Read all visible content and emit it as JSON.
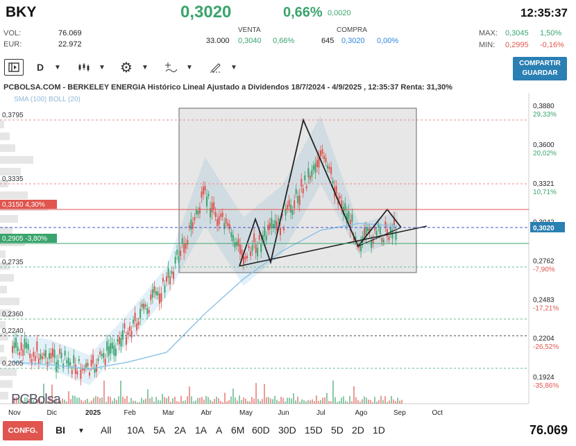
{
  "header": {
    "ticker": "BKY",
    "price": "0,3020",
    "change_pct": "0,66%",
    "change_abs": "0,0020",
    "time": "12:35:37",
    "vol_label": "VOL:",
    "vol_value": "76.069",
    "eur_label": "EUR:",
    "eur_value": "22.972",
    "max_label": "MAX:",
    "max_value": "0,3045",
    "max_pct": "1,50%",
    "min_label": "MIN:",
    "min_value": "0,2995",
    "min_pct": "-0,16%"
  },
  "quote": {
    "sell_label": "VENTA",
    "sell_qty": "33.000",
    "sell_price": "0,3040",
    "sell_pct": "0,66%",
    "buy_label": "COMPRA",
    "buy_qty": "645",
    "buy_price": "0,3020",
    "buy_pct": "0,00%"
  },
  "toolbar": {
    "interval": "D",
    "share_line1": "COMPARTIR",
    "share_line2": "GUARDAR"
  },
  "chart_data": {
    "type": "line",
    "title": "PCBOLSA.COM - BERKELEY ENERGIA Histórico Lineal Ajustado a Dividendos 18/7/2024 - 4/9/2025 , 12:35:37 Renta: 31,30%",
    "indicators": "SMA (100) BOLL (20)",
    "x_tick_labels": [
      "Nov",
      "Dic",
      "2025",
      "Feb",
      "Mar",
      "Abr",
      "May",
      "Jun",
      "Jul",
      "Ago",
      "Sep",
      "Oct"
    ],
    "ylim": [
      0.185,
      0.395
    ],
    "right_axis": [
      {
        "price": "0,3880",
        "pct": "29,33%"
      },
      {
        "price": "0,3600",
        "pct": "20,02%"
      },
      {
        "price": "0,3321",
        "pct": "10,71%"
      },
      {
        "price": "0,3042",
        "pct": ""
      },
      {
        "price": "0,2762",
        "pct": "-7,90%"
      },
      {
        "price": "0,2483",
        "pct": "-17,21%"
      },
      {
        "price": "0,2204",
        "pct": "-26,52%"
      },
      {
        "price": "0,1924",
        "pct": "-35,86%"
      }
    ],
    "left_levels": [
      {
        "label": "0,3795",
        "style": "plain"
      },
      {
        "label": "0,3335",
        "style": "plain"
      },
      {
        "label": "0,3150",
        "pct": "4,30%",
        "style": "red"
      },
      {
        "label": "0,2905",
        "pct": "-3,80%",
        "style": "green"
      },
      {
        "label": "0,2735",
        "style": "plain"
      },
      {
        "label": "0,2360",
        "style": "plain"
      },
      {
        "label": "0,2240",
        "style": "plain"
      },
      {
        "label": "0,2005",
        "style": "plain"
      }
    ],
    "current_price_tag": "0,3020",
    "series": [
      {
        "name": "",
        "x": [
          "Nov",
          "Dic",
          "2025",
          "Feb",
          "Mar",
          "Abr",
          "May",
          "Jun",
          "Jul",
          "Ago",
          "Sep"
        ],
        "values": [
          0.214,
          0.209,
          0.198,
          0.228,
          0.262,
          0.325,
          0.282,
          0.305,
          0.355,
          0.292,
          0.302
        ]
      }
    ]
  },
  "bottom": {
    "config_label": "CONFG.",
    "chart_style": "BI",
    "ranges": [
      "All",
      "10A",
      "5A",
      "2A",
      "1A",
      "A",
      "6M",
      "60D",
      "30D",
      "15D",
      "5D",
      "2D",
      "1D"
    ],
    "volume": "76.069"
  },
  "logo": "PCBolsa",
  "colors": {
    "up": "#3aa46c",
    "down": "#e0554e",
    "accent": "#2a7fb3",
    "sma": "#8fc3e8"
  }
}
